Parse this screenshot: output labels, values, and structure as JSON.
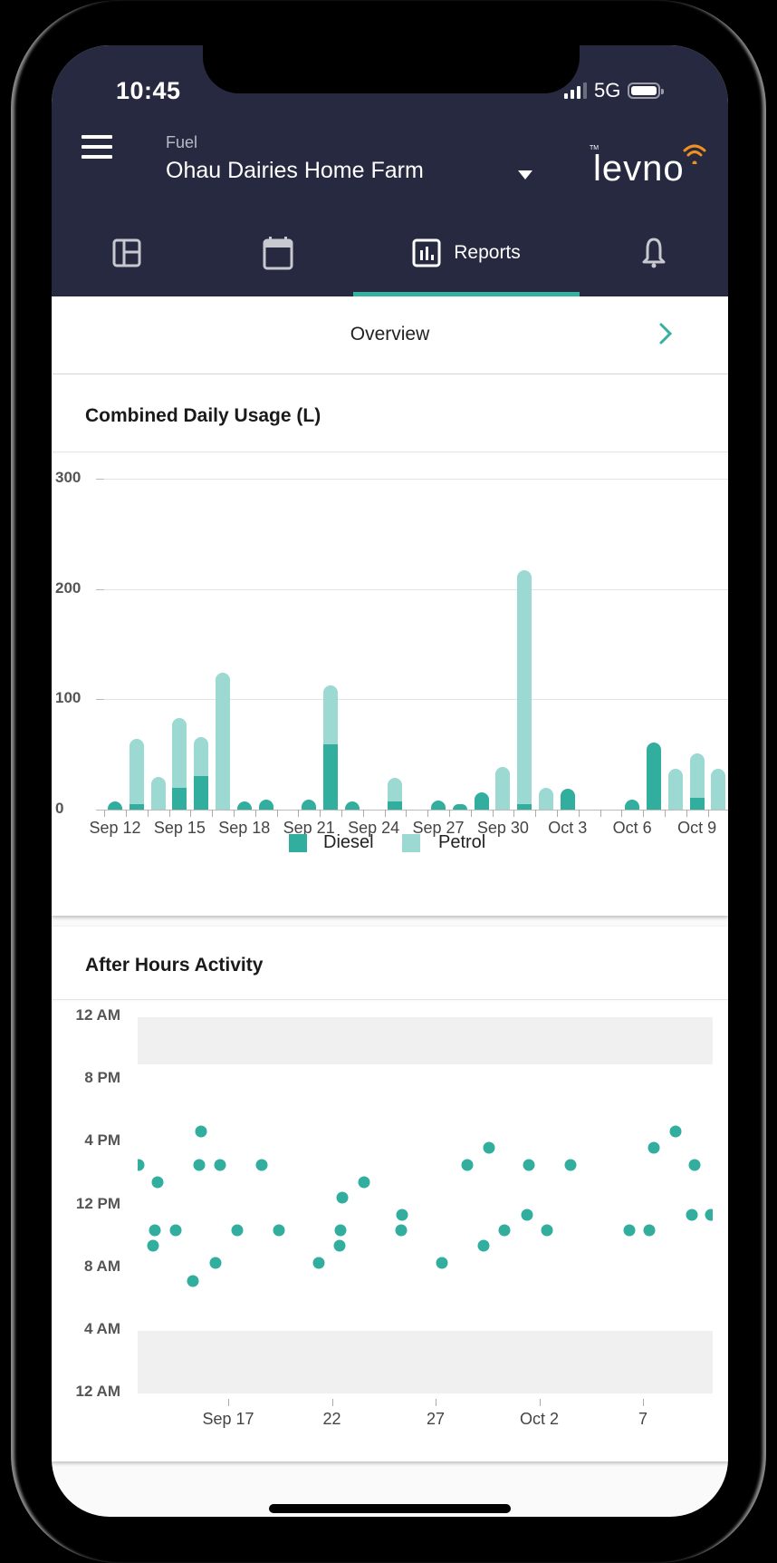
{
  "status_bar": {
    "time": "10:45",
    "network": "5G"
  },
  "header": {
    "section_label": "Fuel",
    "site_name": "Ohau Dairies Home Farm",
    "logo_text": "levno",
    "logo_tm": "TM"
  },
  "tabs": [
    {
      "id": "dashboard",
      "icon": "dashboard-icon",
      "label": "",
      "active": false
    },
    {
      "id": "calendar",
      "icon": "calendar-icon",
      "label": "",
      "active": false
    },
    {
      "id": "reports",
      "icon": "bar-chart-icon",
      "label": "Reports",
      "active": true
    },
    {
      "id": "alerts",
      "icon": "bell-icon",
      "label": "",
      "active": false
    }
  ],
  "overview": {
    "label": "Overview",
    "icon": "chevron-right-icon"
  },
  "colors": {
    "header_bg": "#262940",
    "accent": "#35B1A2",
    "diesel": "#32AE9F",
    "petrol": "#9BD9D2",
    "logo_wave": "#F0901E",
    "band": "#F0F0F0"
  },
  "cards": {
    "usage": {
      "title": "Combined Daily Usage (L)"
    },
    "after_hours": {
      "title": "After Hours Activity"
    }
  },
  "chart_data": [
    {
      "type": "bar",
      "stacked": true,
      "title": "Combined Daily Usage (L)",
      "xlabel": "",
      "ylabel": "",
      "ylim": [
        0,
        300
      ],
      "yticks": [
        0,
        100,
        200,
        300
      ],
      "grid": true,
      "legend_position": "bottom",
      "x_tick_labels": [
        "Sep 12",
        "Sep 15",
        "Sep 18",
        "Sep 21",
        "Sep 24",
        "Sep 27",
        "Sep 30",
        "Oct 3",
        "Oct 6",
        "Oct 9"
      ],
      "categories": [
        "Sep 12",
        "Sep 13",
        "Sep 14",
        "Sep 15",
        "Sep 16",
        "Sep 17",
        "Sep 18",
        "Sep 19",
        "Sep 20",
        "Sep 21",
        "Sep 22",
        "Sep 23",
        "Sep 24",
        "Sep 25",
        "Sep 26",
        "Sep 27",
        "Sep 28",
        "Sep 29",
        "Sep 30",
        "Oct 1",
        "Oct 2",
        "Oct 3",
        "Oct 4",
        "Oct 5",
        "Oct 6",
        "Oct 7",
        "Oct 8",
        "Oct 9",
        "Oct 10"
      ],
      "series": [
        {
          "name": "Diesel",
          "color": "#32AE9F",
          "values": [
            7,
            5,
            0,
            20,
            30,
            0,
            7,
            9,
            0,
            9,
            59,
            7,
            0,
            7,
            0,
            8,
            5,
            16,
            0,
            5,
            0,
            19,
            0,
            0,
            9,
            61,
            0,
            11,
            0
          ]
        },
        {
          "name": "Petrol",
          "color": "#9BD9D2",
          "values": [
            0,
            59,
            30,
            63,
            36,
            124,
            0,
            0,
            0,
            0,
            54,
            0,
            0,
            22,
            0,
            0,
            0,
            0,
            39,
            212,
            20,
            0,
            0,
            0,
            0,
            0,
            37,
            40,
            37
          ]
        }
      ]
    },
    {
      "type": "scatter",
      "title": "After Hours Activity",
      "xlabel": "",
      "ylabel": "",
      "y_tick_labels": [
        "12 AM",
        "8 PM",
        "4 PM",
        "12 PM",
        "8 AM",
        "4 AM",
        "12 AM"
      ],
      "ylim_hours": [
        0,
        24
      ],
      "x_tick_labels": [
        {
          "label": "Sep 17",
          "day_offset": 5
        },
        {
          "label": "22",
          "day_offset": 10
        },
        {
          "label": "27",
          "day_offset": 15
        },
        {
          "label": "Oct 2",
          "day_offset": 20
        },
        {
          "label": "7",
          "day_offset": 25
        }
      ],
      "x_origin": "Sep 12",
      "after_hours_bands": [
        {
          "from_hour": 21,
          "to_hour": 24
        },
        {
          "from_hour": 0,
          "to_hour": 4
        }
      ],
      "points": [
        {
          "day": 0.68,
          "hour": 14.6
        },
        {
          "day": 1.59,
          "hour": 13.5
        },
        {
          "day": 1.46,
          "hour": 10.4
        },
        {
          "day": 1.38,
          "hour": 9.4
        },
        {
          "day": 2.47,
          "hour": 10.4
        },
        {
          "day": 3.69,
          "hour": 16.7
        },
        {
          "day": 3.6,
          "hour": 14.6
        },
        {
          "day": 3.3,
          "hour": 7.2
        },
        {
          "day": 4.39,
          "hour": 8.3
        },
        {
          "day": 4.61,
          "hour": 14.6
        },
        {
          "day": 5.44,
          "hour": 10.4
        },
        {
          "day": 6.62,
          "hour": 14.6
        },
        {
          "day": 7.45,
          "hour": 10.4
        },
        {
          "day": 9.37,
          "hour": 8.3
        },
        {
          "day": 10.37,
          "hour": 9.4
        },
        {
          "day": 10.41,
          "hour": 10.4
        },
        {
          "day": 10.5,
          "hour": 12.5
        },
        {
          "day": 11.55,
          "hour": 13.5
        },
        {
          "day": 13.38,
          "hour": 11.4
        },
        {
          "day": 13.34,
          "hour": 10.4
        },
        {
          "day": 15.31,
          "hour": 8.3
        },
        {
          "day": 16.53,
          "hour": 14.6
        },
        {
          "day": 17.31,
          "hour": 9.4
        },
        {
          "day": 17.58,
          "hour": 15.7
        },
        {
          "day": 18.32,
          "hour": 10.4
        },
        {
          "day": 19.5,
          "hour": 14.6
        },
        {
          "day": 19.41,
          "hour": 11.4
        },
        {
          "day": 20.37,
          "hour": 10.4
        },
        {
          "day": 21.51,
          "hour": 14.6
        },
        {
          "day": 24.34,
          "hour": 10.4
        },
        {
          "day": 25.31,
          "hour": 10.4
        },
        {
          "day": 25.53,
          "hour": 15.7
        },
        {
          "day": 26.57,
          "hour": 16.7
        },
        {
          "day": 27.49,
          "hour": 14.6
        },
        {
          "day": 27.36,
          "hour": 11.4
        },
        {
          "day": 28.28,
          "hour": 11.4
        }
      ]
    }
  ]
}
